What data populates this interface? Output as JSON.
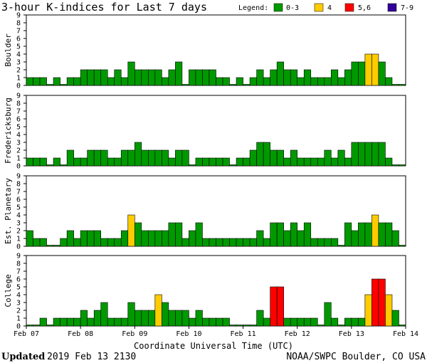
{
  "chart_data": {
    "type": "bar",
    "title": "3-hour K-indices for Last 7 days",
    "legend": {
      "title": "Legend:",
      "items": [
        {
          "label": "0-3",
          "color": "#009900"
        },
        {
          "label": "4",
          "color": "#ffcc00"
        },
        {
          "label": "5,6",
          "color": "#ff0000"
        },
        {
          "label": "7-9",
          "color": "#330099"
        }
      ]
    },
    "yticks": [
      0,
      1,
      2,
      3,
      4,
      5,
      6,
      7,
      8,
      9
    ],
    "ylim": [
      0,
      9
    ],
    "xlabel": "Coordinate Universal Time (UTC)",
    "xtick_labels": [
      "Feb 07",
      "Feb 08",
      "Feb 09",
      "Feb 10",
      "Feb 11",
      "Feb 12",
      "Feb 13",
      "Feb 14"
    ],
    "bars_per_day": 8,
    "panels": [
      {
        "name": "Boulder",
        "values": [
          1,
          1,
          1,
          0,
          1,
          0,
          1,
          1,
          2,
          2,
          2,
          2,
          1,
          2,
          1,
          3,
          2,
          2,
          2,
          2,
          1,
          2,
          3,
          0,
          2,
          2,
          2,
          2,
          1,
          1,
          0,
          1,
          0,
          1,
          2,
          1,
          2,
          3,
          2,
          2,
          1,
          2,
          1,
          1,
          1,
          2,
          1,
          2,
          3,
          3,
          4,
          4,
          3,
          1,
          0,
          0
        ]
      },
      {
        "name": "Fredericksburg",
        "values": [
          1,
          1,
          1,
          0,
          1,
          0,
          2,
          1,
          1,
          2,
          2,
          2,
          1,
          1,
          2,
          2,
          3,
          2,
          2,
          2,
          2,
          1,
          2,
          2,
          0,
          1,
          1,
          1,
          1,
          1,
          0,
          1,
          1,
          2,
          3,
          3,
          2,
          2,
          1,
          2,
          1,
          1,
          1,
          1,
          2,
          1,
          2,
          1,
          3,
          3,
          3,
          3,
          3,
          1,
          0,
          0
        ]
      },
      {
        "name": "Est. Planetary",
        "values": [
          2,
          1,
          1,
          0,
          0,
          1,
          2,
          1,
          2,
          2,
          2,
          1,
          1,
          1,
          2,
          4,
          3,
          2,
          2,
          2,
          2,
          3,
          3,
          1,
          2,
          3,
          1,
          1,
          1,
          1,
          1,
          1,
          1,
          1,
          2,
          1,
          3,
          3,
          2,
          3,
          2,
          3,
          1,
          1,
          1,
          1,
          0,
          3,
          2,
          3,
          3,
          4,
          3,
          3,
          2,
          0
        ]
      },
      {
        "name": "College",
        "values": [
          0,
          0,
          1,
          0,
          1,
          1,
          1,
          1,
          2,
          1,
          2,
          3,
          1,
          1,
          1,
          3,
          2,
          2,
          2,
          4,
          3,
          2,
          2,
          2,
          1,
          2,
          1,
          1,
          1,
          1,
          0,
          0,
          0,
          0,
          2,
          1,
          5,
          5,
          1,
          1,
          1,
          1,
          1,
          0,
          3,
          1,
          0,
          1,
          1,
          1,
          4,
          6,
          6,
          4,
          2,
          0
        ]
      }
    ]
  },
  "footer": {
    "updated_label": "Updated",
    "updated_value": "2019 Feb 13 2130",
    "source": "NOAA/SWPC Boulder, CO USA"
  }
}
